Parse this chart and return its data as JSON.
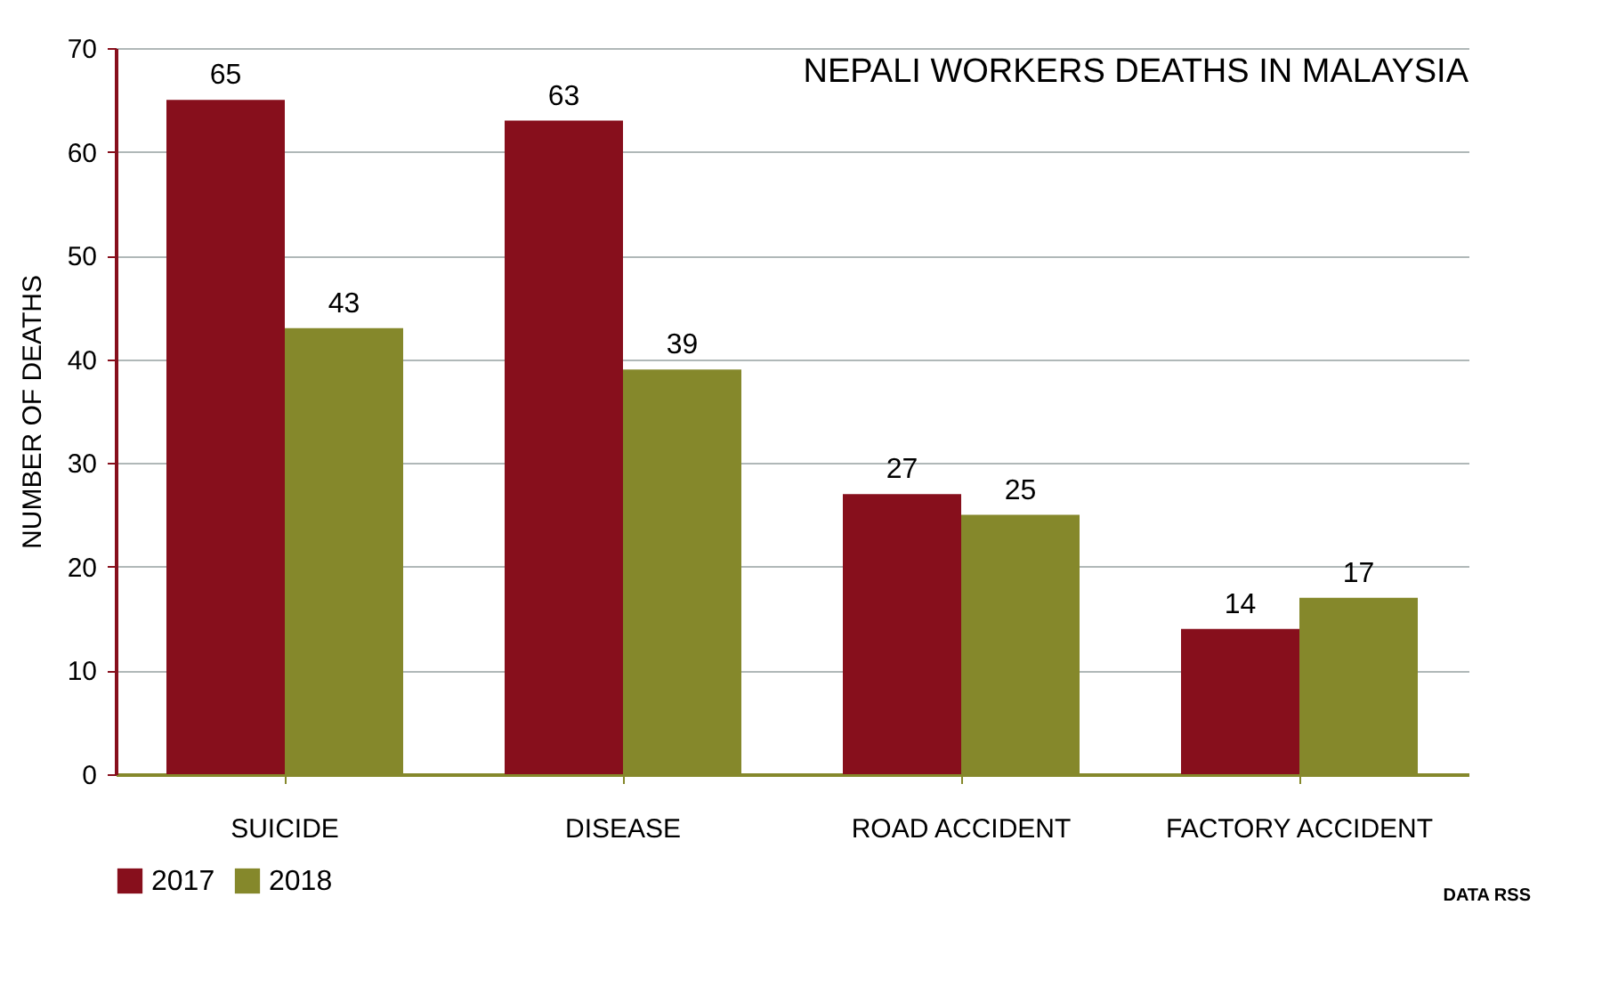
{
  "chart_data": {
    "type": "bar",
    "title": "NEPALI WORKERS DEATHS IN MALAYSIA",
    "ylabel": "NUMBER OF DEATHS",
    "categories": [
      "SUICIDE",
      "DISEASE",
      "ROAD ACCIDENT",
      "FACTORY ACCIDENT"
    ],
    "series": [
      {
        "name": "2017",
        "color": "#870f1c",
        "values": [
          65,
          63,
          27,
          14
        ]
      },
      {
        "name": "2018",
        "color": "#85882b",
        "values": [
          43,
          39,
          25,
          17
        ]
      }
    ],
    "ylim": [
      0,
      70
    ],
    "yticks": [
      0,
      10,
      20,
      30,
      40,
      50,
      60,
      70
    ],
    "grid": "y",
    "legend": "bottom",
    "data_labels": true,
    "annotations": [
      "DATA RSS"
    ]
  }
}
